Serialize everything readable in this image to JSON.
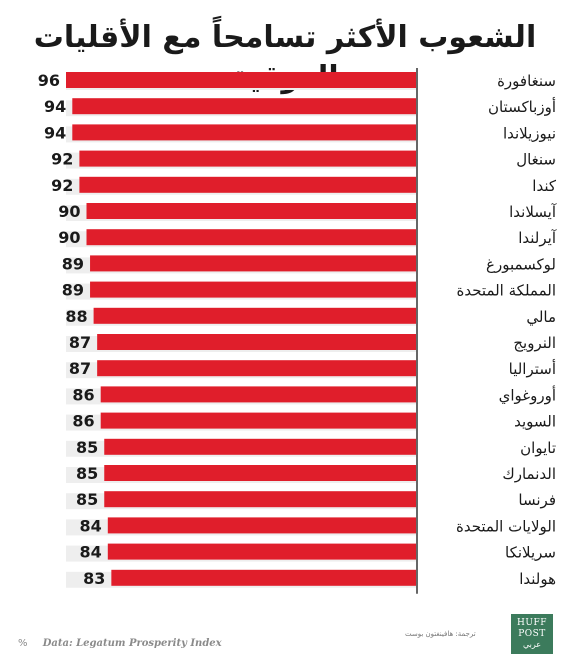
{
  "footer": {
    "percent_symbol": "%",
    "source": "Data: Legatum Prosperity Index",
    "credit": "ترجمة: هافينغتون بوست"
  },
  "logo": {
    "line1": "HUFF",
    "line2": "POST",
    "line3": "عربي"
  },
  "colors": {
    "bar": "#e01e2b",
    "track": "#eeeeee",
    "axis": "#333333",
    "value_text": "#1a1a1a",
    "label_text": "#1a1a1a",
    "logo_bg": "#3c7b5c"
  },
  "chart_data": {
    "type": "bar",
    "orientation": "horizontal",
    "title": "الشعوب الأكثر تسامحاً مع الأقليات العرقية",
    "categories": [
      "سنغافورة",
      "أوزباكستان",
      "نيوزيلاندا",
      "سنغال",
      "كندا",
      "آيسلاندا",
      "آيرلندا",
      "لوكسمبورغ",
      "المملكة المتحدة",
      "مالي",
      "النرويج",
      "أستراليا",
      "أوروغواي",
      "السويد",
      "تايوان",
      "الدنمارك",
      "فرنسا",
      "الولايات المتحدة",
      "سريلانكا",
      "هولندا"
    ],
    "values": [
      96,
      94,
      94,
      92,
      92,
      90,
      90,
      89,
      89,
      88,
      87,
      87,
      86,
      86,
      85,
      85,
      85,
      84,
      84,
      83
    ],
    "value_labels": [
      "96",
      "94",
      "94",
      "92",
      "92",
      "90",
      "90",
      "89",
      "89",
      "88",
      "87",
      "87",
      "86",
      "86",
      "85",
      "85",
      "85",
      "84",
      "84",
      "83"
    ],
    "unit": "%",
    "xlim": [
      0,
      100
    ],
    "grid": false,
    "legend": "none"
  }
}
